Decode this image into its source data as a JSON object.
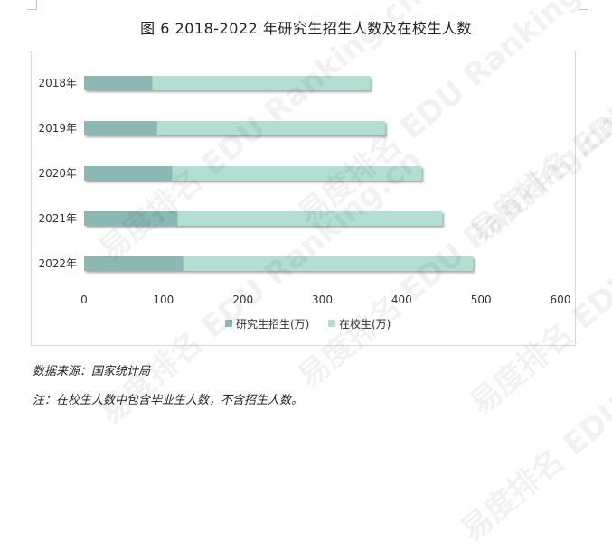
{
  "page": {
    "title": "图 6 2018-2022 年研究生招生人数及在校生人数",
    "source": "数据来源：国家统计局",
    "note": "注：在校生人数中包含毕业生人数，不含招生人数。",
    "watermark": "易度排名 EDU Ranking.cn"
  },
  "chart_data": {
    "type": "bar",
    "orientation": "horizontal",
    "stacked": true,
    "categories": [
      "2018年",
      "2019年",
      "2020年",
      "2021年",
      "2022年"
    ],
    "series": [
      {
        "name": "研究生招生(万)",
        "values": [
          86,
          92,
          111,
          118,
          125
        ],
        "color": "#8bb8b2"
      },
      {
        "name": "在校生(万)",
        "values": [
          274,
          287,
          314,
          333,
          365
        ],
        "color": "#b3dfd2"
      }
    ],
    "xlim": [
      0,
      600
    ],
    "xticks": [
      "0",
      "100",
      "200",
      "300",
      "400",
      "500",
      "600"
    ],
    "grid": false,
    "legend_position": "bottom"
  }
}
